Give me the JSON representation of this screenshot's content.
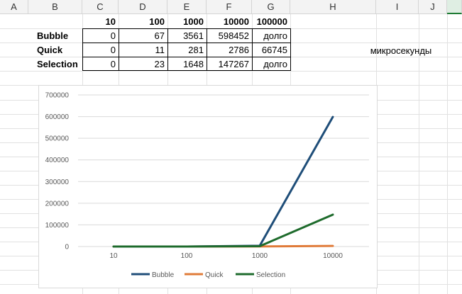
{
  "sheet": {
    "columns": [
      "A",
      "B",
      "C",
      "D",
      "E",
      "F",
      "G",
      "H",
      "I",
      "J",
      ""
    ],
    "header_row": [
      "10",
      "100",
      "1000",
      "10000",
      "100000"
    ],
    "rows": [
      {
        "label": "Bubble",
        "values": [
          "0",
          "67",
          "3561",
          "598452",
          "долго"
        ]
      },
      {
        "label": "Quick",
        "values": [
          "0",
          "11",
          "281",
          "2786",
          "66745"
        ]
      },
      {
        "label": "Selection",
        "values": [
          "0",
          "23",
          "1648",
          "147267",
          "долго"
        ]
      }
    ],
    "note": "микросекунды"
  },
  "chart_data": {
    "type": "line",
    "categories": [
      "10",
      "100",
      "1000",
      "10000"
    ],
    "series": [
      {
        "name": "Bubble",
        "values": [
          0,
          67,
          3561,
          598452
        ],
        "color": "#1f4e79"
      },
      {
        "name": "Quick",
        "values": [
          0,
          11,
          281,
          2786
        ],
        "color": "#e07b39"
      },
      {
        "name": "Selection",
        "values": [
          0,
          23,
          1648,
          147267
        ],
        "color": "#1e6b2c"
      }
    ],
    "y_ticks": [
      "700000",
      "600000",
      "500000",
      "400000",
      "300000",
      "200000",
      "100000",
      "0"
    ],
    "ylim": [
      0,
      700000
    ],
    "legend": "bottom",
    "grid": true
  }
}
